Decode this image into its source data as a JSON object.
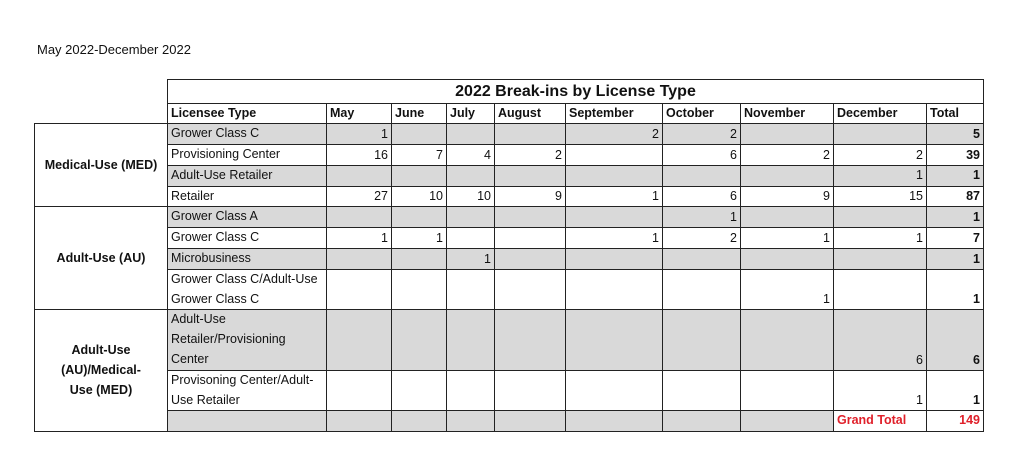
{
  "period": "May 2022-December 2022",
  "title": "2022 Break-ins by License Type",
  "headers": [
    "Licensee Type",
    "May",
    "June",
    "July",
    "August",
    "September",
    "October",
    "November",
    "December",
    "Total"
  ],
  "groups": [
    {
      "label": "Medical-Use (MED)",
      "rows": [
        {
          "type": "Grower Class C",
          "values": [
            "1",
            "",
            "",
            "",
            "2",
            "2",
            "",
            ""
          ],
          "total": "5",
          "shaded": true
        },
        {
          "type": "Provisioning Center",
          "values": [
            "16",
            "7",
            "4",
            "2",
            "",
            "6",
            "2",
            "2"
          ],
          "total": "39",
          "shaded": false
        },
        {
          "type": "Adult-Use Retailer",
          "values": [
            "",
            "",
            "",
            "",
            "",
            "",
            "",
            "1"
          ],
          "total": "1",
          "shaded": true
        },
        {
          "type": "Retailer",
          "values": [
            "27",
            "10",
            "10",
            "9",
            "1",
            "6",
            "9",
            "15"
          ],
          "total": "87",
          "shaded": false
        }
      ]
    },
    {
      "label": "Adult-Use (AU)",
      "rows": [
        {
          "type": "Grower Class A",
          "values": [
            "",
            "",
            "",
            "",
            "",
            "1",
            "",
            ""
          ],
          "total": "1",
          "shaded": true
        },
        {
          "type": "Grower Class C",
          "values": [
            "1",
            "1",
            "",
            "",
            "1",
            "2",
            "1",
            "1"
          ],
          "total": "7",
          "shaded": false
        },
        {
          "type": "Microbusiness",
          "values": [
            "",
            "",
            "1",
            "",
            "",
            "",
            "",
            ""
          ],
          "total": "1",
          "shaded": true
        },
        {
          "type": "Grower Class C/Adult-Use Grower Class C",
          "values": [
            "",
            "",
            "",
            "",
            "",
            "",
            "1",
            ""
          ],
          "total": "1",
          "shaded": false
        }
      ]
    },
    {
      "label": "Adult-Use (AU)/Medical-Use (MED)",
      "rows": [
        {
          "type": "Adult-Use Retailer/Provisioning Center",
          "values": [
            "",
            "",
            "",
            "",
            "",
            "",
            "",
            "6"
          ],
          "total": "6",
          "shaded": true
        },
        {
          "type": "Provisoning Center/Adult-Use Retailer",
          "values": [
            "",
            "",
            "",
            "",
            "",
            "",
            "",
            "1"
          ],
          "total": "1",
          "shaded": false
        }
      ]
    }
  ],
  "grand_total_label": "Grand Total",
  "grand_total": "149",
  "colors": {
    "shade": "#d9d9d9",
    "grand_total": "#e0202a"
  }
}
